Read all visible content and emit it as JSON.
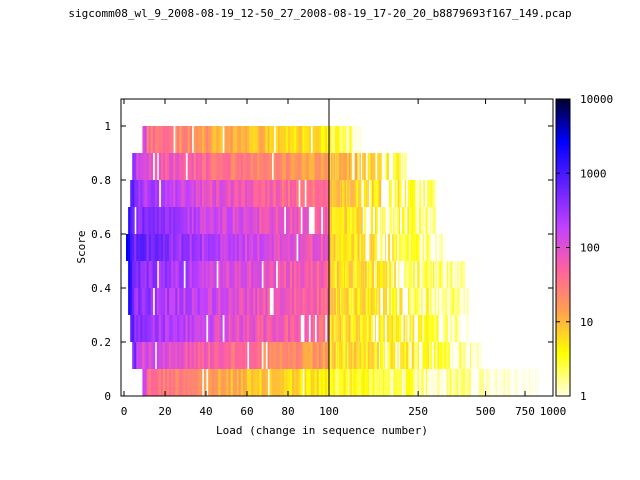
{
  "chart_data": {
    "type": "heatmap",
    "title": "sigcomm08_wl_9_2008-08-19_12-50_27_2008-08-19_17-20_20_b8879693f167_149.pcap",
    "xlabel": "Load (change in sequence number)",
    "ylabel": "Score",
    "x_scale": "split: linear 0-100 (left panel), log 100-1000 (right panel)",
    "ylim": [
      0,
      1.1
    ],
    "x_ticks": [
      {
        "value": 0,
        "label": "0"
      },
      {
        "value": 20,
        "label": "20"
      },
      {
        "value": 40,
        "label": "40"
      },
      {
        "value": 60,
        "label": "60"
      },
      {
        "value": 80,
        "label": "80"
      },
      {
        "value": 100,
        "label": "100"
      },
      {
        "value": 250,
        "label": "250"
      },
      {
        "value": 500,
        "label": "500"
      },
      {
        "value": 750,
        "label": "750"
      },
      {
        "value": 1000,
        "label": "1000"
      }
    ],
    "y_ticks": [
      {
        "value": 0,
        "label": "0"
      },
      {
        "value": 0.2,
        "label": "0.2"
      },
      {
        "value": 0.4,
        "label": "0.4"
      },
      {
        "value": 0.6,
        "label": "0.6"
      },
      {
        "value": 0.8,
        "label": "0.8"
      },
      {
        "value": 1,
        "label": "1"
      }
    ],
    "colorbar": {
      "scale": "log",
      "range": [
        1,
        10000
      ],
      "ticks": [
        {
          "value": 1,
          "label": "1"
        },
        {
          "value": 10,
          "label": "10"
        },
        {
          "value": 100,
          "label": "100"
        },
        {
          "value": 1000,
          "label": "1000"
        },
        {
          "value": 10000,
          "label": "10000"
        }
      ],
      "colors": [
        "#ffffe0",
        "#ffff00",
        "#ffa050",
        "#ff60a0",
        "#c040ff",
        "#6020ff",
        "#0000ff",
        "#000030"
      ]
    },
    "bands": [
      {
        "score": 0.05,
        "left_start": 9,
        "left_count": 40,
        "right_end": 850,
        "right_count": 3
      },
      {
        "score": 0.15,
        "left_start": 4,
        "left_count": 150,
        "right_end": 480,
        "right_count": 6
      },
      {
        "score": 0.25,
        "left_start": 3,
        "left_count": 400,
        "right_end": 430,
        "right_count": 6
      },
      {
        "score": 0.35,
        "left_start": 2,
        "left_count": 450,
        "right_end": 420,
        "right_count": 6
      },
      {
        "score": 0.45,
        "left_start": 2,
        "left_count": 500,
        "right_end": 400,
        "right_count": 6
      },
      {
        "score": 0.55,
        "left_start": 1,
        "left_count": 700,
        "right_end": 330,
        "right_count": 6
      },
      {
        "score": 0.65,
        "left_start": 2,
        "left_count": 500,
        "right_end": 310,
        "right_count": 6
      },
      {
        "score": 0.75,
        "left_start": 3,
        "left_count": 300,
        "right_end": 300,
        "right_count": 8
      },
      {
        "score": 0.85,
        "left_start": 4,
        "left_count": 120,
        "right_end": 220,
        "right_count": 10
      },
      {
        "score": 0.95,
        "left_start": 9,
        "left_count": 40,
        "right_end": 140,
        "right_count": 4
      }
    ]
  }
}
